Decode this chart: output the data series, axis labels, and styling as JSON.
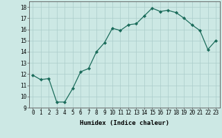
{
  "x": [
    0,
    1,
    2,
    3,
    4,
    5,
    6,
    7,
    8,
    9,
    10,
    11,
    12,
    13,
    14,
    15,
    16,
    17,
    18,
    19,
    20,
    21,
    22,
    23
  ],
  "y": [
    11.9,
    11.5,
    11.6,
    9.5,
    9.5,
    10.7,
    12.2,
    12.5,
    14.0,
    14.8,
    16.1,
    15.9,
    16.4,
    16.5,
    17.2,
    17.9,
    17.6,
    17.7,
    17.5,
    17.0,
    16.4,
    15.9,
    14.2,
    15.0
  ],
  "xlabel": "Humidex (Indice chaleur)",
  "ylim": [
    9,
    18.5
  ],
  "xlim": [
    -0.5,
    23.5
  ],
  "yticks": [
    9,
    10,
    11,
    12,
    13,
    14,
    15,
    16,
    17,
    18
  ],
  "xticks": [
    0,
    1,
    2,
    3,
    4,
    5,
    6,
    7,
    8,
    9,
    10,
    11,
    12,
    13,
    14,
    15,
    16,
    17,
    18,
    19,
    20,
    21,
    22,
    23
  ],
  "line_color": "#1a6b5a",
  "marker_color": "#1a6b5a",
  "bg_color": "#cce8e4",
  "grid_color": "#aaccca",
  "spine_color": "#555555",
  "label_fontsize": 6.5,
  "tick_fontsize": 5.5
}
